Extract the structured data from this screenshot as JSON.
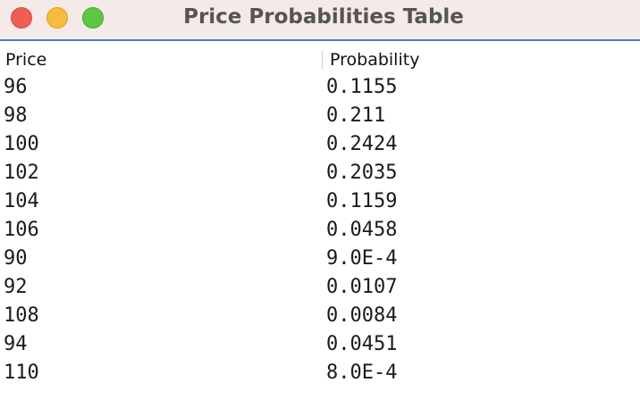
{
  "window": {
    "title": "Price Probabilities Table"
  },
  "table": {
    "columns": [
      "Price",
      "Probability"
    ],
    "rows": [
      {
        "price": "96",
        "probability": "0.1155"
      },
      {
        "price": "98",
        "probability": "0.211"
      },
      {
        "price": "100",
        "probability": "0.2424"
      },
      {
        "price": "102",
        "probability": "0.2035"
      },
      {
        "price": "104",
        "probability": "0.1159"
      },
      {
        "price": "106",
        "probability": "0.0458"
      },
      {
        "price": "90",
        "probability": "9.0E-4"
      },
      {
        "price": "92",
        "probability": "0.0107"
      },
      {
        "price": "108",
        "probability": "0.0084"
      },
      {
        "price": "94",
        "probability": "0.0451"
      },
      {
        "price": "110",
        "probability": "8.0E-4"
      }
    ]
  },
  "colors": {
    "titlebar_bg": "#f4eae9",
    "titlebar_border": "#4a7fb8",
    "close": "#ee5e55",
    "minimize": "#f6bd3c",
    "zoom": "#5fc644"
  }
}
